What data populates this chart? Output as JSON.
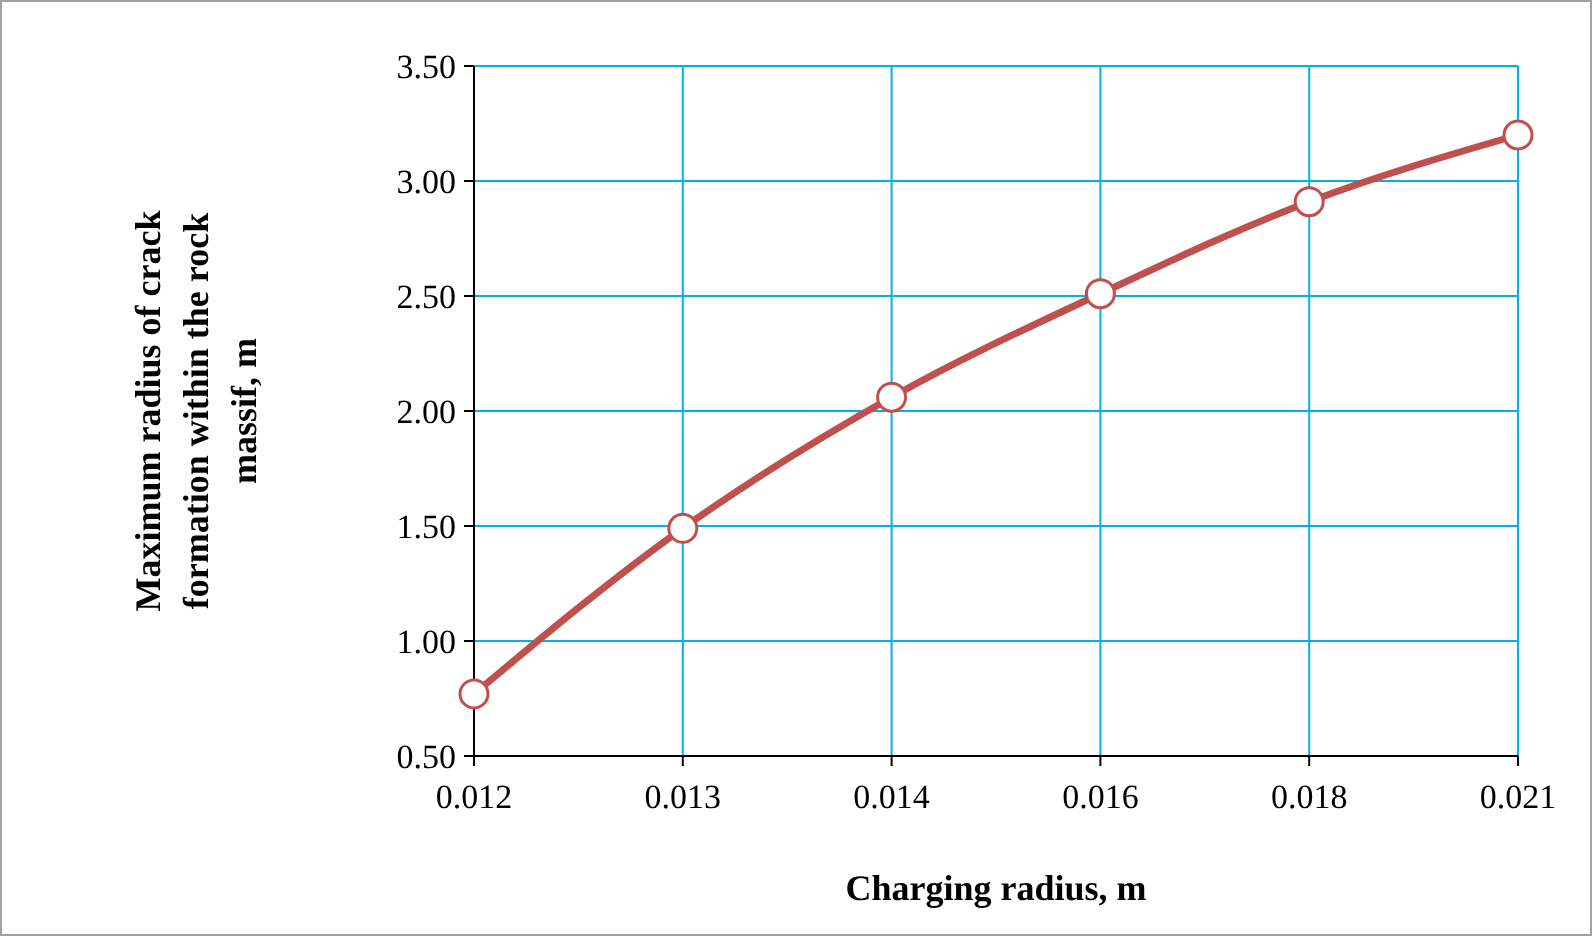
{
  "chart_data": {
    "type": "line",
    "xlabel": "Charging radius, m",
    "ylabel": "Maximum radius of crack formation within the rock massif, m",
    "categories": [
      "0.012",
      "0.013",
      "0.014",
      "0.016",
      "0.018",
      "0.021"
    ],
    "series": [
      {
        "color": "#c0504d",
        "values": [
          0.77,
          1.49,
          2.06,
          2.51,
          2.91,
          3.2
        ]
      }
    ],
    "ylim": [
      0.5,
      3.5
    ],
    "yticks": [
      {
        "value": 0.5,
        "label": "0.50"
      },
      {
        "value": 1,
        "label": "1.00"
      },
      {
        "value": 1.5,
        "label": "1.50"
      },
      {
        "value": 2,
        "label": "2.00"
      },
      {
        "value": 2.5,
        "label": "2.50"
      },
      {
        "value": 3,
        "label": "3.00"
      },
      {
        "value": 3.5,
        "label": "3.50"
      }
    ],
    "grid": true,
    "marker": "circle",
    "line_style": "solid"
  }
}
